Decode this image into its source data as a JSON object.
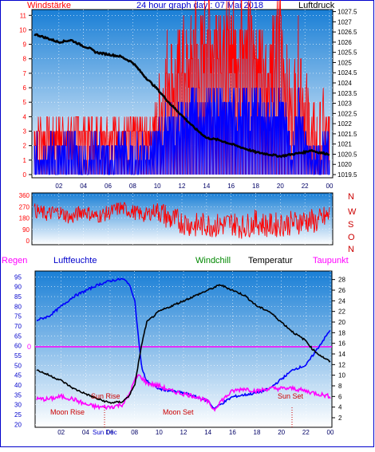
{
  "colors": {
    "frame": "#0000cc",
    "plot_top": "#1a7fd6",
    "plot_bottom": "#ffffff",
    "wind_red": "#ff0000",
    "wind_blue": "#0000ff",
    "pressure": "#000000",
    "dir_red": "#ff0000",
    "humidity": "#0000ff",
    "rain_marker": "#ff00ff",
    "windchill": "#008800",
    "temperature": "#000000",
    "dewpoint": "#ff00ff",
    "sun_moon": "#cc0000"
  },
  "top": {
    "left_label": "Windstärke",
    "title": "24 hour graph day : 07 Mai 2018",
    "right_label": "Luftdruck"
  },
  "direction_letters": [
    "N",
    "W",
    "S",
    "O",
    "N"
  ],
  "bottom": {
    "regen_label": "Regen",
    "humidity_label": "Luftfeuchte",
    "windchill_label": "Windchill",
    "temperature_label": "Temperatur",
    "dewpoint_label": "Taupunkt",
    "rain_zero_label": "0",
    "sun_rise": "Sun Rise",
    "sun_set": "Sun Set",
    "moon_rise": "Moon Rise",
    "moon_set": "Moon Set",
    "sun_dec_label": "Sun Dec"
  },
  "chart_data": [
    {
      "type": "line",
      "name": "wind_pressure",
      "x_ticks": [
        "02",
        "04",
        "06",
        "08",
        "10",
        "12",
        "14",
        "16",
        "18",
        "20",
        "22",
        "00"
      ],
      "wind_axis": [
        0,
        1,
        2,
        3,
        4,
        5,
        6,
        7,
        8,
        9,
        10,
        11
      ],
      "pressure_axis": [
        "1019.5",
        "1020",
        "1020.5",
        "1021",
        "1021.5",
        "1022",
        "1022.5",
        "1023",
        "1023.5",
        "1024",
        "1024.5",
        "1025",
        "1025.5",
        "1026",
        "1026.5",
        "1027",
        "1027.5"
      ],
      "wind_ylim": [
        0,
        11.4
      ],
      "pressure_ylim": [
        1019.5,
        1027.6
      ],
      "pressure": {
        "x": [
          0,
          1,
          2,
          3,
          4,
          4.5,
          5,
          6,
          7,
          8,
          9,
          10,
          11,
          12,
          13,
          14,
          15,
          16,
          17,
          18,
          19,
          20,
          21,
          22,
          22.5,
          23,
          24
        ],
        "y": [
          1026.4,
          1026.2,
          1026.0,
          1026.1,
          1025.8,
          1025.7,
          1025.5,
          1025.4,
          1025.3,
          1025.0,
          1024.3,
          1023.7,
          1023.0,
          1022.4,
          1021.8,
          1021.3,
          1021.2,
          1021.0,
          1020.8,
          1020.6,
          1020.5,
          1020.4,
          1020.5,
          1020.6,
          1020.7,
          1020.6,
          1020.5
        ]
      },
      "wind_red": {
        "x": [
          0,
          1,
          2,
          3,
          4,
          5,
          6,
          7,
          8,
          9,
          10,
          10.5,
          11,
          11.5,
          12,
          12.5,
          13,
          13.5,
          14,
          14.5,
          15,
          15.5,
          16,
          16.5,
          17,
          17.5,
          18,
          18.5,
          19,
          19.5,
          20,
          20.5,
          21,
          21.5,
          22,
          22.5,
          23,
          23.5,
          24
        ],
        "y": [
          3,
          3,
          3,
          3,
          3,
          3,
          3,
          3,
          3,
          3,
          4,
          6,
          8,
          6,
          9,
          7,
          10,
          8,
          11,
          9,
          11,
          8,
          10,
          9,
          11,
          10,
          8,
          9,
          7,
          8,
          11,
          6,
          4,
          8,
          5,
          3,
          2,
          3,
          2
        ]
      },
      "wind_blue": {
        "x": [
          0,
          1,
          2,
          3,
          4,
          5,
          6,
          7,
          8,
          9,
          10,
          10.5,
          11,
          11.5,
          12,
          12.5,
          13,
          13.5,
          14,
          14.5,
          15,
          15.5,
          16,
          16.5,
          17,
          17.5,
          18,
          18.5,
          19,
          19.5,
          20,
          20.5,
          21,
          21.5,
          22,
          22.5,
          23,
          23.5,
          24
        ],
        "y": [
          1,
          2,
          1,
          2,
          1,
          2,
          1,
          2,
          1,
          2,
          2,
          3,
          4,
          3,
          4,
          4,
          5,
          4,
          5,
          4,
          5,
          4,
          5,
          4,
          5,
          4,
          5,
          4,
          4,
          5,
          5,
          3,
          2,
          5,
          2,
          1,
          1,
          2,
          1
        ]
      }
    },
    {
      "type": "line",
      "name": "wind_direction",
      "y_ticks": [
        0,
        90,
        180,
        270,
        360
      ],
      "ylim": [
        0,
        360
      ],
      "x": [
        0,
        1,
        2,
        3,
        4,
        5,
        6,
        7,
        8,
        9,
        10,
        11,
        12,
        13,
        14,
        15,
        16,
        17,
        18,
        19,
        20,
        21,
        22,
        23,
        24
      ],
      "y": [
        240,
        210,
        230,
        180,
        240,
        190,
        220,
        260,
        230,
        200,
        250,
        170,
        150,
        120,
        130,
        120,
        140,
        110,
        150,
        120,
        130,
        140,
        160,
        150,
        200
      ]
    },
    {
      "type": "line",
      "name": "humidity_temperature",
      "humidity_axis": [
        20,
        25,
        30,
        35,
        40,
        45,
        50,
        55,
        60,
        65,
        70,
        75,
        80,
        85,
        90,
        95
      ],
      "temperature_axis": [
        2,
        4,
        6,
        8,
        10,
        12,
        14,
        16,
        18,
        20,
        22,
        24,
        26,
        28
      ],
      "humidity_ylim": [
        18.5,
        98
      ],
      "temperature_ylim": [
        0.2,
        29.6
      ],
      "humidity": {
        "x": [
          0,
          1,
          2,
          3,
          4,
          5,
          6,
          7,
          7.5,
          8,
          8.3,
          8.6,
          9,
          10,
          11,
          12,
          13,
          14,
          14.5,
          15,
          16,
          17,
          18,
          19,
          20,
          21,
          22,
          23,
          24
        ],
        "y": [
          73,
          75,
          80,
          85,
          88,
          91,
          93,
          94,
          92,
          84,
          65,
          48,
          42,
          38,
          37,
          36,
          34,
          32,
          28,
          30,
          34,
          35,
          36,
          38,
          43,
          48,
          50,
          59,
          68
        ]
      },
      "temperature": {
        "x": [
          0,
          1,
          2,
          3,
          4,
          5,
          6,
          7,
          7.5,
          8,
          8.3,
          8.6,
          9,
          10,
          11,
          12,
          13,
          14,
          14.5,
          15,
          16,
          17,
          18,
          19,
          20,
          21,
          22,
          22.5,
          23,
          24
        ],
        "y": [
          11,
          10,
          9,
          7.5,
          6.5,
          5.5,
          4.8,
          5,
          6,
          8,
          12,
          16,
          20,
          22,
          23,
          24,
          25,
          26,
          26.5,
          27,
          26,
          25,
          23,
          22,
          20,
          18,
          16.5,
          15,
          14,
          12.5
        ]
      },
      "dewpoint": {
        "x": [
          0,
          1,
          2,
          3,
          4,
          5,
          6,
          7,
          7.5,
          8,
          8.3,
          8.6,
          9,
          10,
          11,
          12,
          13,
          14,
          14.5,
          15,
          16,
          17,
          18,
          19,
          20,
          21,
          22,
          23,
          24
        ],
        "y": [
          5.5,
          5.5,
          6,
          5.5,
          4.5,
          4,
          4,
          4.5,
          6,
          9,
          10,
          9.5,
          8.5,
          8,
          7,
          6.5,
          6,
          5,
          3.5,
          5,
          7,
          7.5,
          7,
          7.5,
          7.5,
          7.5,
          7,
          6.5,
          6
        ]
      }
    }
  ]
}
